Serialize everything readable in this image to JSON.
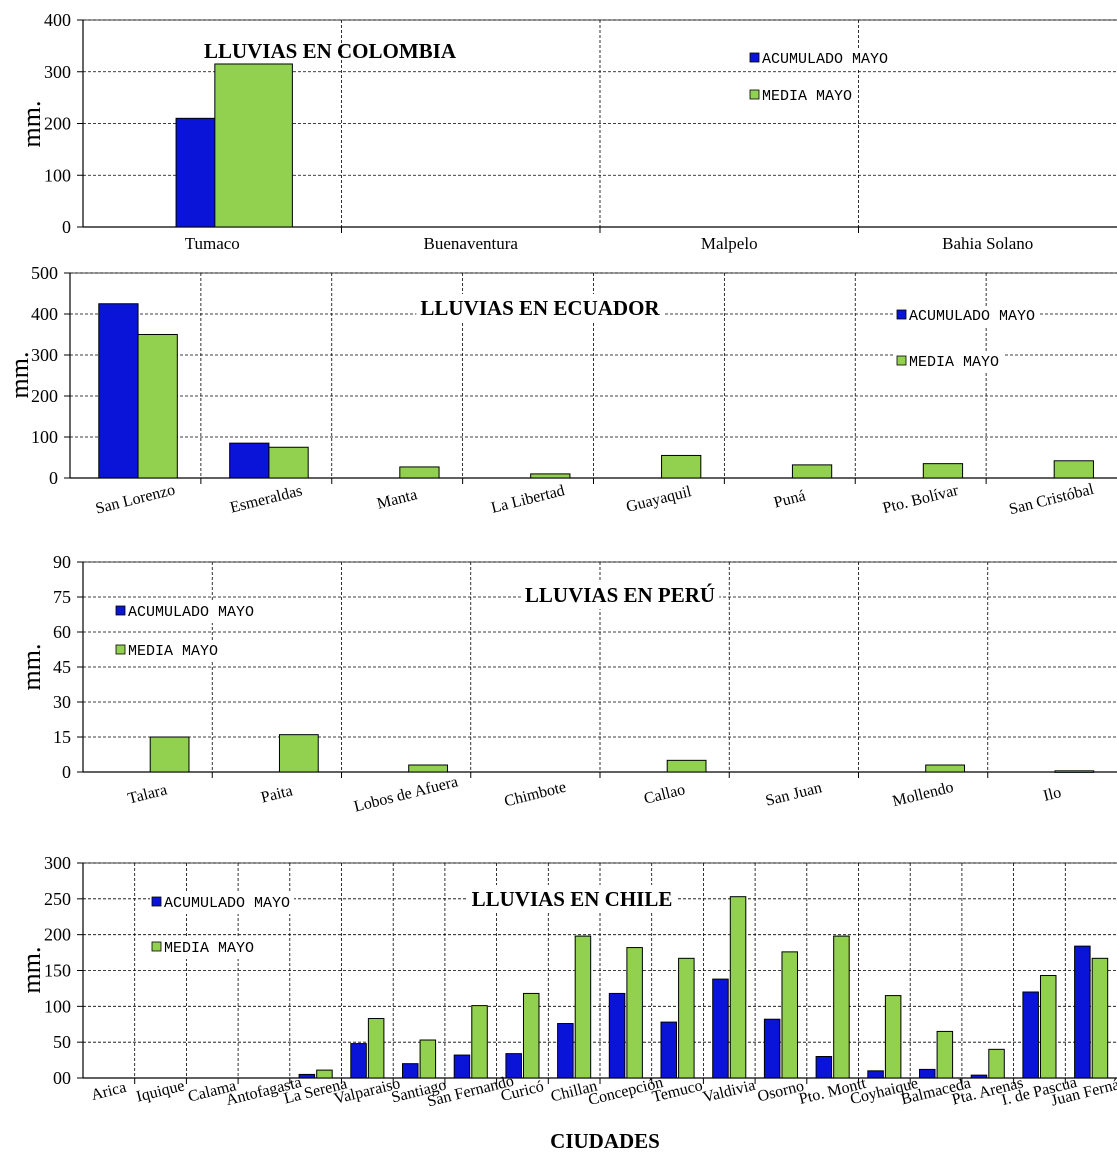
{
  "colors": {
    "acumulado": "#0a14d8",
    "media": "#92d050",
    "grid": "#000000",
    "text": "#000000"
  },
  "xaxis_title": "CIUDADES",
  "chart_data": [
    {
      "type": "bar",
      "title": "LLUVIAS EN COLOMBIA",
      "ylabel": "mm.",
      "ylim": [
        0,
        400
      ],
      "yticks": [
        "0",
        "100",
        "200",
        "300",
        "400"
      ],
      "categories": [
        "Tumaco",
        "Buenaventura",
        "Malpelo",
        "Bahia Solano"
      ],
      "label_rotation": "horizontal",
      "legend_placement": "top-right",
      "series": [
        {
          "name": "ACUMULADO MAYO",
          "values": [
            210,
            0,
            0,
            0
          ]
        },
        {
          "name": "MEDIA MAYO",
          "values": [
            315,
            0,
            0,
            0
          ]
        }
      ]
    },
    {
      "type": "bar",
      "title": "LLUVIAS EN ECUADOR",
      "ylabel": "mm.",
      "ylim": [
        0,
        500
      ],
      "yticks": [
        "0",
        "100",
        "200",
        "300",
        "400",
        "500"
      ],
      "categories": [
        "San Lorenzo",
        "Esmeraldas",
        "Manta",
        "La Libertad",
        "Guayaquil",
        "Puná",
        "Pto. Bolívar",
        "San Cristóbal"
      ],
      "label_rotation": "slanted",
      "legend_placement": "top-right",
      "series": [
        {
          "name": "ACUMULADO MAYO",
          "values": [
            425,
            85,
            0,
            0,
            0,
            0,
            0,
            0
          ]
        },
        {
          "name": "MEDIA MAYO",
          "values": [
            350,
            75,
            27,
            10,
            55,
            32,
            35,
            42
          ]
        }
      ]
    },
    {
      "type": "bar",
      "title": "LLUVIAS EN PERÚ",
      "ylabel": "mm.",
      "ylim": [
        0,
        90
      ],
      "yticks": [
        "0",
        "15",
        "30",
        "45",
        "60",
        "75",
        "90"
      ],
      "categories": [
        "Talara",
        "Paita",
        "Lobos de Afuera",
        "Chimbote",
        "Callao",
        "San Juan",
        "Mollendo",
        "Ilo"
      ],
      "label_rotation": "slanted",
      "legend_placement": "top-left",
      "series": [
        {
          "name": "ACUMULADO MAYO",
          "values": [
            0,
            0,
            0,
            0,
            0,
            0,
            0,
            0
          ]
        },
        {
          "name": "MEDIA MAYO",
          "values": [
            15,
            16,
            3,
            0,
            5,
            0,
            3,
            0.5
          ]
        }
      ]
    },
    {
      "type": "bar",
      "title": "LLUVIAS EN CHILE",
      "ylabel": "mm.",
      "xlabel": "CIUDADES",
      "ylim": [
        0,
        300
      ],
      "yticks": [
        "00",
        "50",
        "100",
        "150",
        "200",
        "250",
        "300"
      ],
      "categories": [
        "Arica",
        "Iquique",
        "Calama",
        "Antofagasta",
        "La Serena",
        "Valparaiso",
        "Santiago",
        "San Fernando",
        "Curicó",
        "Chillan",
        "Concepción",
        "Temuco",
        "Valdivia",
        "Osorno",
        "Pto. Montt",
        "Coyhaique",
        "Balmaceda",
        "Pta. Arenas",
        "I. de Pascua",
        "Juan Fernán."
      ],
      "label_rotation": "slanted",
      "legend_placement": "top-left",
      "series": [
        {
          "name": "ACUMULADO MAYO",
          "values": [
            0,
            0,
            0,
            0,
            5,
            48,
            20,
            32,
            34,
            76,
            118,
            78,
            138,
            82,
            30,
            10,
            12,
            4,
            120,
            184
          ]
        },
        {
          "name": "MEDIA MAYO",
          "values": [
            0,
            0,
            0,
            0,
            11,
            83,
            53,
            101,
            118,
            198,
            182,
            167,
            253,
            176,
            198,
            115,
            65,
            40,
            143,
            167
          ]
        }
      ]
    }
  ]
}
